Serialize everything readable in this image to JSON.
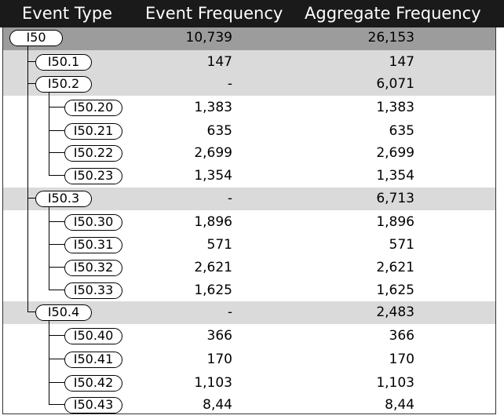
{
  "header": {
    "event_type": "Event Type",
    "event_frequency": "Event Frequency",
    "aggregate_frequency": "Aggregate Frequency"
  },
  "rows": [
    {
      "code": "I50",
      "level": 0,
      "event": "10,739",
      "aggregate": "26,153"
    },
    {
      "code": "I50.1",
      "level": 1,
      "event": "147",
      "aggregate": "147"
    },
    {
      "code": "I50.2",
      "level": 1,
      "event": "-",
      "aggregate": "6,071"
    },
    {
      "code": "I50.20",
      "level": 2,
      "event": "1,383",
      "aggregate": "1,383"
    },
    {
      "code": "I50.21",
      "level": 2,
      "event": "635",
      "aggregate": "635"
    },
    {
      "code": "I50.22",
      "level": 2,
      "event": "2,699",
      "aggregate": "2,699"
    },
    {
      "code": "I50.23",
      "level": 2,
      "event": "1,354",
      "aggregate": "1,354"
    },
    {
      "code": "I50.3",
      "level": 1,
      "event": "-",
      "aggregate": "6,713"
    },
    {
      "code": "I50.30",
      "level": 2,
      "event": "1,896",
      "aggregate": "1,896"
    },
    {
      "code": "I50.31",
      "level": 2,
      "event": "571",
      "aggregate": "571"
    },
    {
      "code": "I50.32",
      "level": 2,
      "event": "2,621",
      "aggregate": "2,621"
    },
    {
      "code": "I50.33",
      "level": 2,
      "event": "1,625",
      "aggregate": "1,625"
    },
    {
      "code": "I50.4",
      "level": 1,
      "event": "-",
      "aggregate": "2,483"
    },
    {
      "code": "I50.40",
      "level": 2,
      "event": "366",
      "aggregate": "366"
    },
    {
      "code": "I50.41",
      "level": 2,
      "event": "170",
      "aggregate": "170"
    },
    {
      "code": "I50.42",
      "level": 2,
      "event": "1,103",
      "aggregate": "1,103"
    },
    {
      "code": "I50.43",
      "level": 2,
      "event": "8,44",
      "aggregate": "8,44"
    }
  ],
  "colors": {
    "header_bg": "#1a1a1a",
    "header_text": "#ffffff",
    "root_band": "#9c9c9c",
    "parent_band": "#dadada",
    "child_band": "#ffffff",
    "outline": "#000000"
  }
}
